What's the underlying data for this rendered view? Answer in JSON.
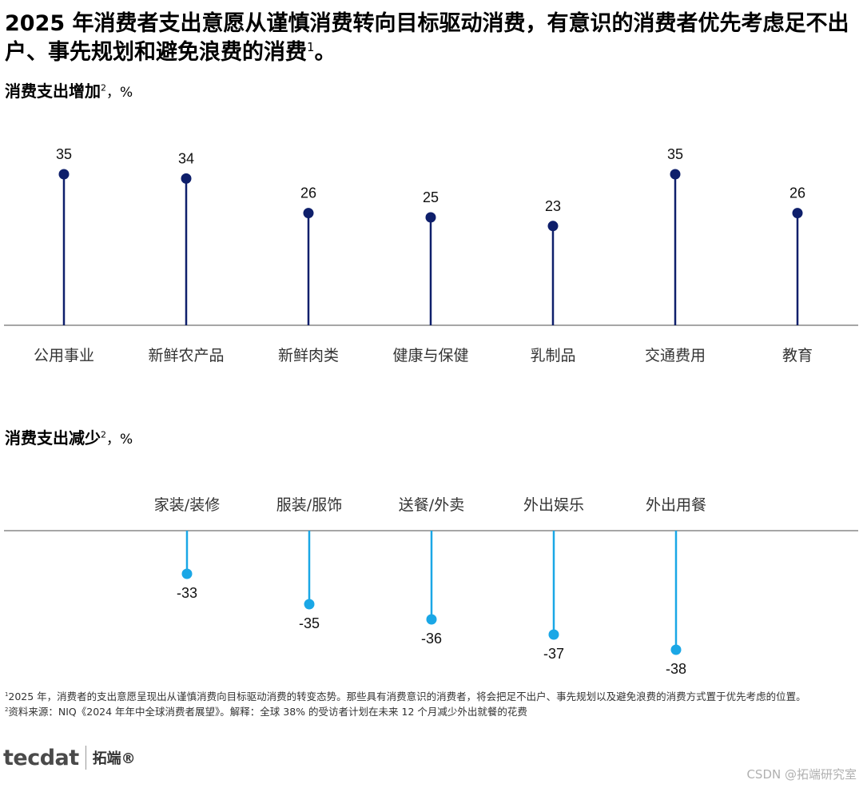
{
  "title": {
    "main": "2025 年消费者支出意愿从谨慎消费转向目标驱动消费，有意识的消费者优先考虑足不出户、事先规划和避免浪费的消费",
    "sup": "1",
    "end": "。"
  },
  "section_increase": {
    "label": "消费支出增加",
    "sup": "2",
    "unit": "，%"
  },
  "section_decrease": {
    "label": "消费支出减少",
    "sup": "2",
    "unit": "，%"
  },
  "colors": {
    "increase": "#0e1f6b",
    "decrease": "#1aa7e6",
    "axis": "#888888"
  },
  "chart_data": [
    {
      "type": "lollipop",
      "title": "消费支出增加，%",
      "categories": [
        "公用事业",
        "新鲜农产品",
        "新鲜肉类",
        "健康与保健",
        "乳制品",
        "交通费用",
        "教育"
      ],
      "values": [
        35,
        34,
        26,
        25,
        23,
        35,
        26
      ],
      "grid": false
    },
    {
      "type": "lollipop",
      "title": "消费支出减少，%",
      "categories": [
        "家装/装修",
        "服装/服饰",
        "送餐/外卖",
        "外出娱乐",
        "外出用餐"
      ],
      "values": [
        -33,
        -35,
        -36,
        -37,
        -38
      ],
      "grid": false
    }
  ],
  "footnotes": {
    "n1_sup": "1",
    "n1": "2025 年，消费者的支出意愿呈现出从谨慎消费向目标驱动消费的转变态势。那些具有消费意识的消费者，将会把足不出户、事先规划以及避免浪费的消费方式置于优先考虑的位置。",
    "n2_sup": "2",
    "n2": "资料来源：NIQ《2024 年年中全球消费者展望》。解释：全球 38% 的受访者计划在未来 12 个月减少外出就餐的花费"
  },
  "logo": {
    "mark": "tecdat",
    "cn": "拓端®"
  },
  "watermark": "CSDN @拓端研究室"
}
